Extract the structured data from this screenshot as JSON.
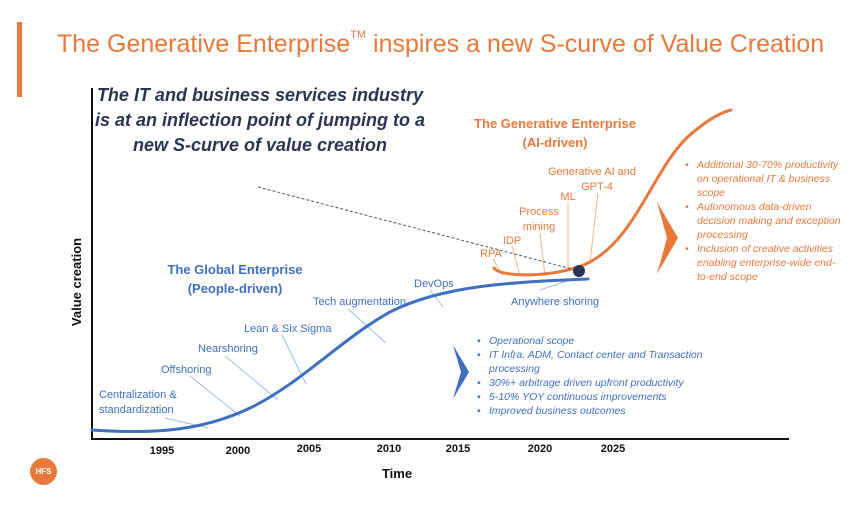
{
  "title": {
    "main": "The Generative Enterprise",
    "tm": "TM",
    "rest": " inspires a new S-curve of Value Creation"
  },
  "headline": "The IT and business services industry is at an inflection point of jumping to a new S-curve of value creation",
  "logo": "HFS",
  "axes": {
    "xlabel": "Time",
    "ylabel": "Value creation",
    "ticks": [
      "1995",
      "2000",
      "2005",
      "2010",
      "2015",
      "2020",
      "2025"
    ]
  },
  "curves": {
    "global": {
      "label_line1": "The Global Enterprise",
      "label_line2": "(People-driven)",
      "color": "#3e6fc0"
    },
    "generative": {
      "label_line1": "The Generative Enterprise",
      "label_line2": "(AI-driven)",
      "color": "#e8793b"
    }
  },
  "milestones_global": {
    "centralization_1": "Centralization &",
    "centralization_2": "standardization",
    "offshoring": "Offshoring",
    "nearshoring": "Nearshoring",
    "lean": "Lean & Six Sigma",
    "tech": "Tech augmentation",
    "devops": "DevOps",
    "anywhere": "Anywhere shoring"
  },
  "milestones_generative": {
    "rpa": "RPA",
    "idp": "IDP",
    "process_1": "Process",
    "process_2": "mining",
    "ml": "ML",
    "genai_1": "Generative AI and",
    "genai_2": "GPT-4"
  },
  "orange_bullets": [
    "Additional 30-70% productivity on operational IT & business scope",
    "Autonomous data-driven decision making and exception processing",
    "Inclusion of creative activities enabling enterprise-wide end-to-end scope"
  ],
  "blue_bullets": [
    "Operational scope",
    "IT Infra, ADM, Contact center and Transaction processing",
    "30%+ arbitrage driven upfront productivity",
    "5-10% YOY continuous improvements",
    "Improved business outcomes"
  ],
  "colors": {
    "orange": "#e8793b",
    "blue": "#3e6fc0",
    "navy": "#2b3553",
    "axis": "#111111"
  }
}
